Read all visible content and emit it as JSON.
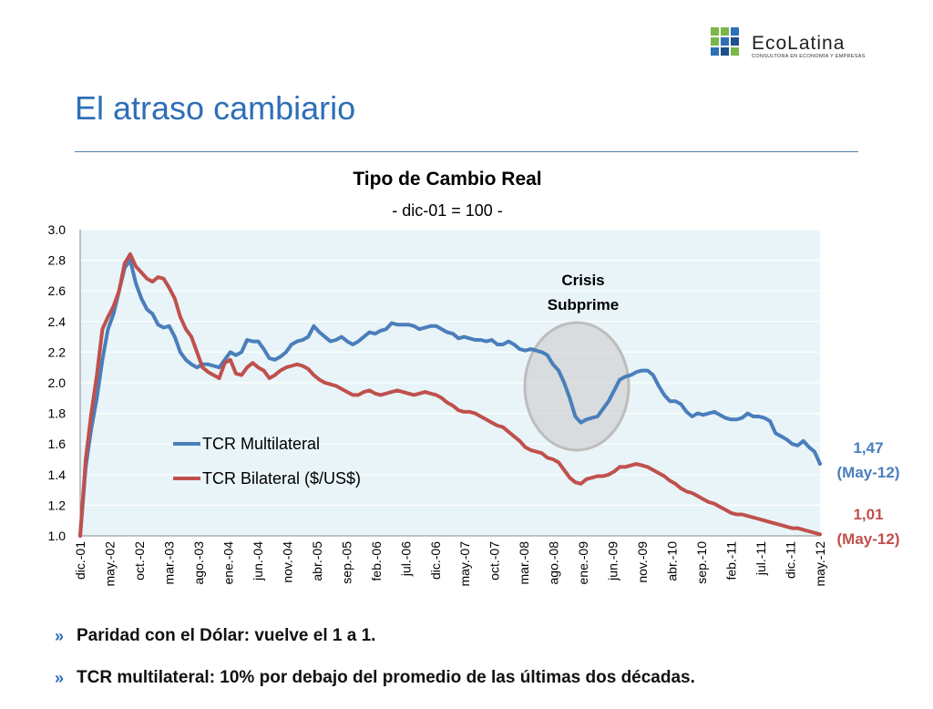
{
  "brand": {
    "name": "EcoLatina",
    "tagline": "CONSULTORA EN ECONOMÍA Y EMPRESAS",
    "colors": [
      "#7ab648",
      "#2e6fb7",
      "#1f4e8c"
    ]
  },
  "page_title": "El atraso cambiario",
  "bullets": [
    "Paridad con el Dólar: vuelve el 1 a 1.",
    "TCR multilateral: 10% por debajo del promedio de las últimas dos décadas."
  ],
  "bullet_glyph": "»",
  "chart_data": {
    "type": "line",
    "title": "Tipo de Cambio Real",
    "subtitle": "- dic-01 = 100 -",
    "ylim": [
      1.0,
      3.0
    ],
    "yticks": [
      "1.0",
      "1.2",
      "1.4",
      "1.6",
      "1.8",
      "2.0",
      "2.2",
      "2.4",
      "2.6",
      "2.8",
      "3.0"
    ],
    "x_start": "dic-01",
    "x_end": "may-12",
    "xticks": [
      "dic.-01",
      "may.-02",
      "oct.-02",
      "mar.-03",
      "ago.-03",
      "ene.-04",
      "jun.-04",
      "nov.-04",
      "abr.-05",
      "sep.-05",
      "feb.-06",
      "jul.-06",
      "dic.-06",
      "may.-07",
      "oct.-07",
      "mar.-08",
      "ago.-08",
      "ene.-09",
      "jun.-09",
      "nov.-09",
      "abr.-10",
      "sep.-10",
      "feb.-11",
      "jul.-11",
      "dic.-11",
      "may.-12"
    ],
    "grid": true,
    "background": "#e8f4f8",
    "legend_position": "center-left",
    "annotation": {
      "text": [
        "Crisis",
        "Subprime"
      ],
      "period": [
        "mar.-08",
        "ago.-09"
      ]
    },
    "series": [
      {
        "name": "TCR Multilateral",
        "color": "#4a7ebb",
        "end_label": [
          "1,47",
          "(May-12)"
        ],
        "values": [
          [
            0,
            1.0
          ],
          [
            1,
            1.45
          ],
          [
            2,
            1.7
          ],
          [
            3,
            1.9
          ],
          [
            4,
            2.15
          ],
          [
            5,
            2.35
          ],
          [
            6,
            2.45
          ],
          [
            7,
            2.6
          ],
          [
            8,
            2.75
          ],
          [
            9,
            2.8
          ],
          [
            10,
            2.65
          ],
          [
            11,
            2.55
          ],
          [
            12,
            2.48
          ],
          [
            13,
            2.45
          ],
          [
            14,
            2.38
          ],
          [
            15,
            2.36
          ],
          [
            16,
            2.37
          ],
          [
            17,
            2.3
          ],
          [
            18,
            2.2
          ],
          [
            19,
            2.15
          ],
          [
            20,
            2.12
          ],
          [
            21,
            2.1
          ],
          [
            22,
            2.12
          ],
          [
            23,
            2.12
          ],
          [
            24,
            2.11
          ],
          [
            25,
            2.1
          ],
          [
            26,
            2.15
          ],
          [
            27,
            2.2
          ],
          [
            28,
            2.18
          ],
          [
            29,
            2.2
          ],
          [
            30,
            2.28
          ],
          [
            31,
            2.27
          ],
          [
            32,
            2.27
          ],
          [
            33,
            2.22
          ],
          [
            34,
            2.16
          ],
          [
            35,
            2.15
          ],
          [
            36,
            2.17
          ],
          [
            37,
            2.2
          ],
          [
            38,
            2.25
          ],
          [
            39,
            2.27
          ],
          [
            40,
            2.28
          ],
          [
            41,
            2.3
          ],
          [
            42,
            2.37
          ],
          [
            43,
            2.33
          ],
          [
            44,
            2.3
          ],
          [
            45,
            2.27
          ],
          [
            46,
            2.28
          ],
          [
            47,
            2.3
          ],
          [
            48,
            2.27
          ],
          [
            49,
            2.25
          ],
          [
            50,
            2.27
          ],
          [
            51,
            2.3
          ],
          [
            52,
            2.33
          ],
          [
            53,
            2.32
          ],
          [
            54,
            2.34
          ],
          [
            55,
            2.35
          ],
          [
            56,
            2.39
          ],
          [
            57,
            2.38
          ],
          [
            58,
            2.38
          ],
          [
            59,
            2.38
          ],
          [
            60,
            2.37
          ],
          [
            61,
            2.35
          ],
          [
            62,
            2.36
          ],
          [
            63,
            2.37
          ],
          [
            64,
            2.37
          ],
          [
            65,
            2.35
          ],
          [
            66,
            2.33
          ],
          [
            67,
            2.32
          ],
          [
            68,
            2.29
          ],
          [
            69,
            2.3
          ],
          [
            70,
            2.29
          ],
          [
            71,
            2.28
          ],
          [
            72,
            2.28
          ],
          [
            73,
            2.27
          ],
          [
            74,
            2.28
          ],
          [
            75,
            2.25
          ],
          [
            76,
            2.25
          ],
          [
            77,
            2.27
          ],
          [
            78,
            2.25
          ],
          [
            79,
            2.22
          ],
          [
            80,
            2.21
          ],
          [
            81,
            2.22
          ],
          [
            82,
            2.21
          ],
          [
            83,
            2.2
          ],
          [
            84,
            2.18
          ],
          [
            85,
            2.12
          ],
          [
            86,
            2.08
          ],
          [
            87,
            2.0
          ],
          [
            88,
            1.9
          ],
          [
            89,
            1.78
          ],
          [
            90,
            1.74
          ],
          [
            91,
            1.76
          ],
          [
            92,
            1.77
          ],
          [
            93,
            1.78
          ],
          [
            94,
            1.83
          ],
          [
            95,
            1.88
          ],
          [
            96,
            1.95
          ],
          [
            97,
            2.02
          ],
          [
            98,
            2.04
          ],
          [
            99,
            2.05
          ],
          [
            100,
            2.07
          ],
          [
            101,
            2.08
          ],
          [
            102,
            2.08
          ],
          [
            103,
            2.05
          ],
          [
            104,
            1.98
          ],
          [
            105,
            1.92
          ],
          [
            106,
            1.88
          ],
          [
            107,
            1.88
          ],
          [
            108,
            1.86
          ],
          [
            109,
            1.81
          ],
          [
            110,
            1.78
          ],
          [
            111,
            1.8
          ],
          [
            112,
            1.79
          ],
          [
            113,
            1.8
          ],
          [
            114,
            1.81
          ],
          [
            115,
            1.79
          ],
          [
            116,
            1.77
          ],
          [
            117,
            1.76
          ],
          [
            118,
            1.76
          ],
          [
            119,
            1.77
          ],
          [
            120,
            1.8
          ],
          [
            121,
            1.78
          ],
          [
            122,
            1.78
          ],
          [
            123,
            1.77
          ],
          [
            124,
            1.75
          ],
          [
            125,
            1.67
          ],
          [
            126,
            1.65
          ],
          [
            127,
            1.63
          ],
          [
            128,
            1.6
          ],
          [
            129,
            1.59
          ],
          [
            130,
            1.62
          ],
          [
            131,
            1.58
          ],
          [
            132,
            1.55
          ],
          [
            133,
            1.47
          ]
        ]
      },
      {
        "name": "TCR Bilateral ($/US$)",
        "color": "#c0504d",
        "end_label": [
          "1,01",
          "(May-12)"
        ],
        "values": [
          [
            0,
            1.0
          ],
          [
            1,
            1.5
          ],
          [
            2,
            1.8
          ],
          [
            3,
            2.05
          ],
          [
            4,
            2.35
          ],
          [
            5,
            2.43
          ],
          [
            6,
            2.5
          ],
          [
            7,
            2.6
          ],
          [
            8,
            2.78
          ],
          [
            9,
            2.84
          ],
          [
            10,
            2.76
          ],
          [
            11,
            2.72
          ],
          [
            12,
            2.68
          ],
          [
            13,
            2.66
          ],
          [
            14,
            2.69
          ],
          [
            15,
            2.68
          ],
          [
            16,
            2.62
          ],
          [
            17,
            2.55
          ],
          [
            18,
            2.43
          ],
          [
            19,
            2.35
          ],
          [
            20,
            2.3
          ],
          [
            21,
            2.2
          ],
          [
            22,
            2.1
          ],
          [
            23,
            2.07
          ],
          [
            24,
            2.05
          ],
          [
            25,
            2.03
          ],
          [
            26,
            2.13
          ],
          [
            27,
            2.15
          ],
          [
            28,
            2.06
          ],
          [
            29,
            2.05
          ],
          [
            30,
            2.1
          ],
          [
            31,
            2.13
          ],
          [
            32,
            2.1
          ],
          [
            33,
            2.08
          ],
          [
            34,
            2.03
          ],
          [
            35,
            2.05
          ],
          [
            36,
            2.08
          ],
          [
            37,
            2.1
          ],
          [
            38,
            2.11
          ],
          [
            39,
            2.12
          ],
          [
            40,
            2.11
          ],
          [
            41,
            2.09
          ],
          [
            42,
            2.05
          ],
          [
            43,
            2.02
          ],
          [
            44,
            2.0
          ],
          [
            45,
            1.99
          ],
          [
            46,
            1.98
          ],
          [
            47,
            1.96
          ],
          [
            48,
            1.94
          ],
          [
            49,
            1.92
          ],
          [
            50,
            1.92
          ],
          [
            51,
            1.94
          ],
          [
            52,
            1.95
          ],
          [
            53,
            1.93
          ],
          [
            54,
            1.92
          ],
          [
            55,
            1.93
          ],
          [
            56,
            1.94
          ],
          [
            57,
            1.95
          ],
          [
            58,
            1.94
          ],
          [
            59,
            1.93
          ],
          [
            60,
            1.92
          ],
          [
            61,
            1.93
          ],
          [
            62,
            1.94
          ],
          [
            63,
            1.93
          ],
          [
            64,
            1.92
          ],
          [
            65,
            1.9
          ],
          [
            66,
            1.87
          ],
          [
            67,
            1.85
          ],
          [
            68,
            1.82
          ],
          [
            69,
            1.81
          ],
          [
            70,
            1.81
          ],
          [
            71,
            1.8
          ],
          [
            72,
            1.78
          ],
          [
            73,
            1.76
          ],
          [
            74,
            1.74
          ],
          [
            75,
            1.72
          ],
          [
            76,
            1.71
          ],
          [
            77,
            1.68
          ],
          [
            78,
            1.65
          ],
          [
            79,
            1.62
          ],
          [
            80,
            1.58
          ],
          [
            81,
            1.56
          ],
          [
            82,
            1.55
          ],
          [
            83,
            1.54
          ],
          [
            84,
            1.51
          ],
          [
            85,
            1.5
          ],
          [
            86,
            1.48
          ],
          [
            87,
            1.43
          ],
          [
            88,
            1.38
          ],
          [
            89,
            1.35
          ],
          [
            90,
            1.34
          ],
          [
            91,
            1.37
          ],
          [
            92,
            1.38
          ],
          [
            93,
            1.39
          ],
          [
            94,
            1.39
          ],
          [
            95,
            1.4
          ],
          [
            96,
            1.42
          ],
          [
            97,
            1.45
          ],
          [
            98,
            1.45
          ],
          [
            99,
            1.46
          ],
          [
            100,
            1.47
          ],
          [
            101,
            1.46
          ],
          [
            102,
            1.45
          ],
          [
            103,
            1.43
          ],
          [
            104,
            1.41
          ],
          [
            105,
            1.39
          ],
          [
            106,
            1.36
          ],
          [
            107,
            1.34
          ],
          [
            108,
            1.31
          ],
          [
            109,
            1.29
          ],
          [
            110,
            1.28
          ],
          [
            111,
            1.26
          ],
          [
            112,
            1.24
          ],
          [
            113,
            1.22
          ],
          [
            114,
            1.21
          ],
          [
            115,
            1.19
          ],
          [
            116,
            1.17
          ],
          [
            117,
            1.15
          ],
          [
            118,
            1.14
          ],
          [
            119,
            1.14
          ],
          [
            120,
            1.13
          ],
          [
            121,
            1.12
          ],
          [
            122,
            1.11
          ],
          [
            123,
            1.1
          ],
          [
            124,
            1.09
          ],
          [
            125,
            1.08
          ],
          [
            126,
            1.07
          ],
          [
            127,
            1.06
          ],
          [
            128,
            1.05
          ],
          [
            129,
            1.05
          ],
          [
            130,
            1.04
          ],
          [
            131,
            1.03
          ],
          [
            132,
            1.02
          ],
          [
            133,
            1.01
          ]
        ]
      }
    ]
  }
}
